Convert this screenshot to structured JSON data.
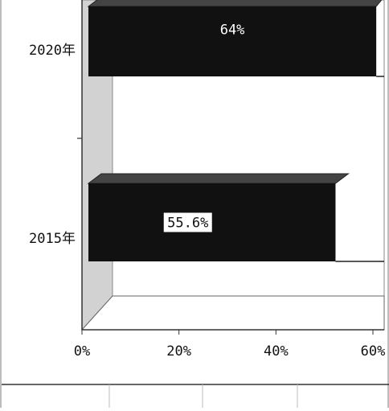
{
  "chart_data": {
    "type": "bar",
    "orientation": "horizontal",
    "style": "3d",
    "categories": [
      "2020年",
      "2015年"
    ],
    "values": [
      64,
      55.6
    ],
    "data_labels": [
      "64%",
      "55.6%"
    ],
    "x_ticks": [
      "0%",
      "20%",
      "40%",
      "60%"
    ],
    "xlim": [
      0,
      60
    ],
    "title": "",
    "xlabel": "",
    "ylabel": "",
    "grid": false,
    "bar_color": "#111111"
  }
}
